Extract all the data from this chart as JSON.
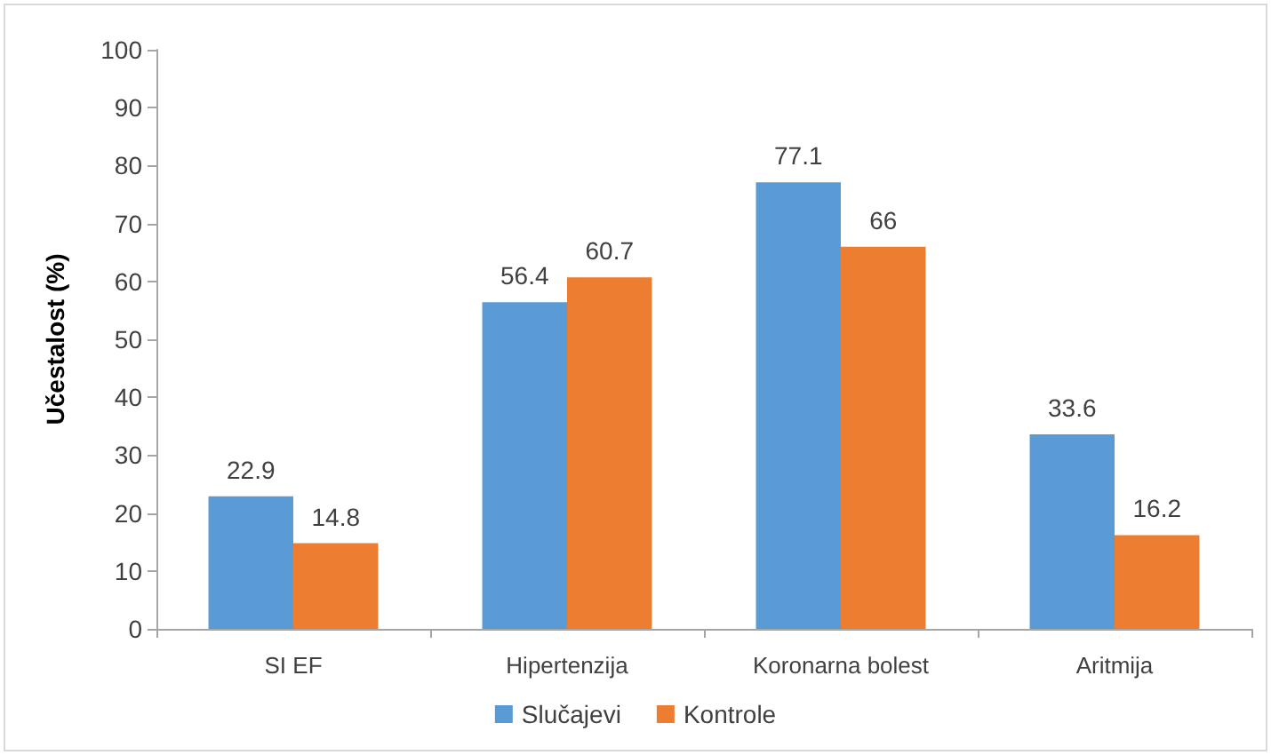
{
  "chart_data": {
    "type": "bar",
    "ylabel": "Učestalost (%)",
    "categories": [
      "SI EF",
      "Hipertenzija",
      "Koronarna bolest",
      "Aritmija"
    ],
    "series": [
      {
        "name": "Slučajevi",
        "color": "#5b9bd5",
        "values": [
          22.9,
          56.4,
          77.1,
          33.6
        ]
      },
      {
        "name": "Kontrole",
        "color": "#ed7d31",
        "values": [
          14.8,
          60.7,
          66,
          16.2
        ]
      }
    ],
    "ylim": [
      0,
      100
    ],
    "yticks": [
      0,
      10,
      20,
      30,
      40,
      50,
      60,
      70,
      80,
      90,
      100
    ],
    "grid": false,
    "legend": "bottom",
    "data_labels": true
  }
}
